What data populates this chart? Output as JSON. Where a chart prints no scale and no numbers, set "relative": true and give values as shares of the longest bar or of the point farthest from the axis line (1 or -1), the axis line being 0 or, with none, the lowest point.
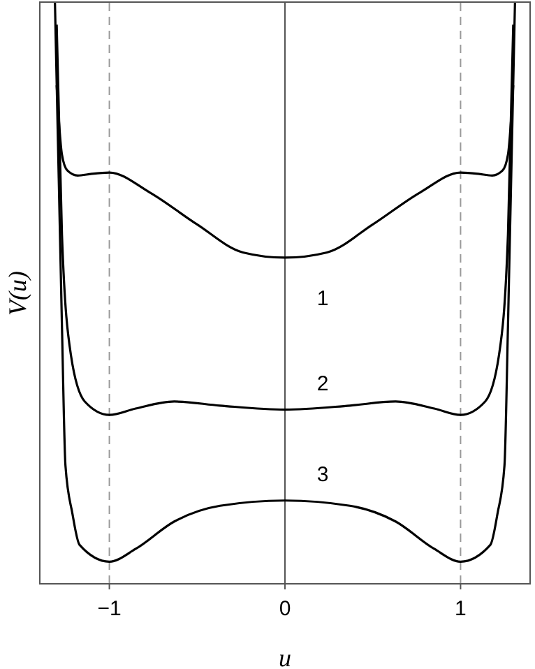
{
  "chart_data": {
    "type": "line",
    "xlabel": "u",
    "ylabel": "V(u)",
    "relative": true,
    "xlim": [
      -1.4,
      1.4
    ],
    "xticks": [
      {
        "value": -1,
        "label": "−1"
      },
      0,
      1
    ],
    "grid": false,
    "legend": false,
    "marker": "none",
    "line_style": "solid",
    "ref_lines": [
      {
        "axis": "x",
        "value": -1,
        "color": "#999999",
        "line_style": "dashed"
      },
      {
        "axis": "x",
        "value": 0,
        "color": "#555555",
        "line_style": "solid"
      },
      {
        "axis": "x",
        "value": 1,
        "color": "#999999",
        "line_style": "dashed"
      }
    ],
    "series": [
      {
        "name": "1",
        "color": "#000000",
        "x": [
          -1.3,
          -1.27,
          -1.24,
          -1.18,
          -1.1,
          -1.0,
          -0.77,
          -0.5,
          -0.24,
          0,
          0.24,
          0.5,
          0.77,
          1.0,
          1.1,
          1.18,
          1.24,
          1.27,
          1.3
        ],
        "values": [
          0.856,
          0.737,
          0.71,
          0.701,
          0.704,
          0.706,
          0.672,
          0.617,
          0.569,
          0.56,
          0.569,
          0.617,
          0.672,
          0.706,
          0.704,
          0.701,
          0.71,
          0.737,
          0.856
        ]
      },
      {
        "name": "2",
        "color": "#000000",
        "x": [
          -1.3,
          -1.27,
          -1.22,
          -1.14,
          -1.0,
          -0.85,
          -0.63,
          -0.37,
          0,
          0.37,
          0.63,
          0.85,
          1.0,
          1.14,
          1.22,
          1.27,
          1.3
        ],
        "values": [
          0.96,
          0.6,
          0.395,
          0.313,
          0.29,
          0.301,
          0.313,
          0.306,
          0.299,
          0.306,
          0.313,
          0.301,
          0.29,
          0.313,
          0.395,
          0.6,
          0.96
        ]
      },
      {
        "name": "3",
        "color": "#000000",
        "x": [
          -1.31,
          -1.27,
          -1.25,
          -1.21,
          -1.17,
          -1.0,
          -0.85,
          -0.63,
          -0.37,
          0,
          0.37,
          0.63,
          0.85,
          1.0,
          1.17,
          1.21,
          1.25,
          1.27,
          1.31
        ],
        "values": [
          1.0,
          0.443,
          0.203,
          0.12,
          0.067,
          0.038,
          0.06,
          0.107,
          0.134,
          0.143,
          0.134,
          0.107,
          0.06,
          0.038,
          0.067,
          0.12,
          0.203,
          0.443,
          1.0
        ]
      }
    ]
  }
}
